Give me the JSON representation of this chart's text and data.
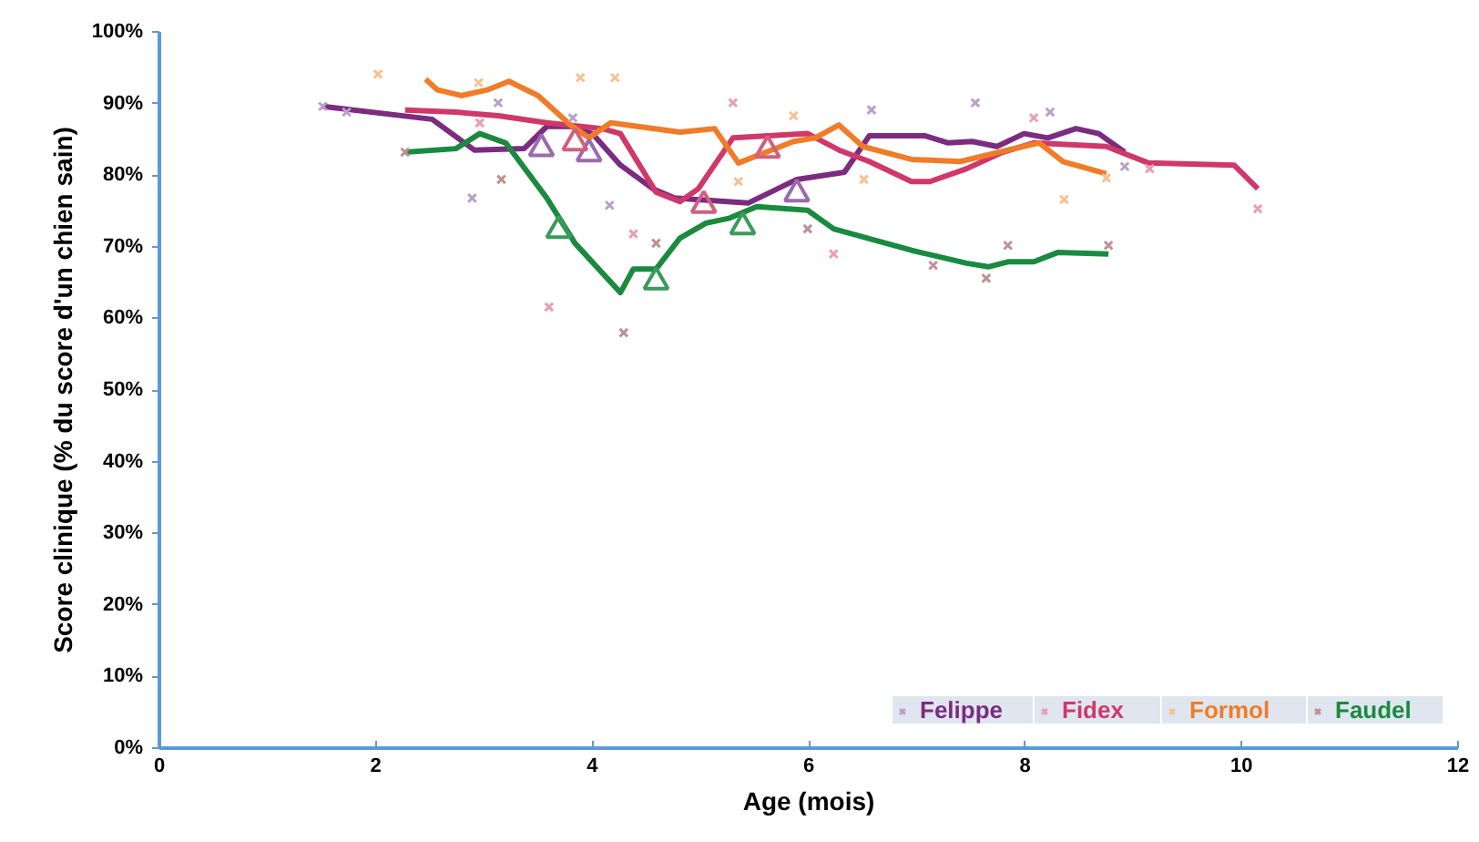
{
  "chart_data": {
    "type": "line",
    "xlabel": "Age (mois)",
    "ylabel": "Score clinique (% du score d'un chien sain)",
    "xlim": [
      0,
      12
    ],
    "xticks": [
      0,
      2,
      4,
      6,
      8,
      10,
      12
    ],
    "ylim": [
      0,
      100
    ],
    "yticks": [
      {
        "value": 0,
        "label": "0%"
      },
      {
        "value": 10,
        "label": "10%"
      },
      {
        "value": 20,
        "label": "20%"
      },
      {
        "value": 30,
        "label": "30%"
      },
      {
        "value": 40,
        "label": "40%"
      },
      {
        "value": 50,
        "label": "50%"
      },
      {
        "value": 60,
        "label": "60%"
      },
      {
        "value": 70,
        "label": "70%"
      },
      {
        "value": 80,
        "label": "80%"
      },
      {
        "value": 90,
        "label": "90%"
      },
      {
        "value": 100,
        "label": "100%"
      }
    ],
    "grid": false,
    "legend": "bottom right",
    "line_style": "solid",
    "series": [
      {
        "name": "Felippe",
        "type": "scatter",
        "marker": "cross",
        "color": "#b9a0c8",
        "x": [
          1.51,
          1.73,
          2.89,
          3.13,
          3.82,
          4.16,
          6.58,
          7.54,
          8.23,
          8.92
        ],
        "values": [
          89.6,
          88.8,
          76.8,
          90.1,
          88.0,
          75.8,
          89.1,
          90.1,
          88.8,
          81.2
        ]
      },
      {
        "color": "#7b2c80",
        "x": [
          1.51,
          2.52,
          2.91,
          3.37,
          3.58,
          3.8,
          4.0,
          4.26,
          4.56,
          4.76,
          5.44,
          5.89,
          6.33,
          6.56,
          7.07,
          7.29,
          7.51,
          7.74,
          7.99,
          8.21,
          8.47,
          8.68,
          8.92
        ],
        "values": [
          89.6,
          87.8,
          83.5,
          83.7,
          86.8,
          86.8,
          85.8,
          81.4,
          78.1,
          76.8,
          76.1,
          79.4,
          80.4,
          85.5,
          85.5,
          84.5,
          84.7,
          84.0,
          85.8,
          85.2,
          86.5,
          85.8,
          83.2
        ]
      },
      {
        "name": "Fidex",
        "type": "scatter",
        "marker": "cross",
        "color": "#e8a0b4",
        "x": [
          2.96,
          3.6,
          4.38,
          5.3,
          6.23,
          8.08,
          9.15,
          10.15
        ],
        "values": [
          87.3,
          61.6,
          71.8,
          90.1,
          69.0,
          88.0,
          80.9,
          75.3
        ]
      },
      {
        "color": "#d0386a",
        "x": [
          2.27,
          2.74,
          3.13,
          3.58,
          4.09,
          4.26,
          4.59,
          4.81,
          4.98,
          5.3,
          5.99,
          6.28,
          6.56,
          6.95,
          7.12,
          7.46,
          7.79,
          8.08,
          8.75,
          9.14,
          9.93,
          10.15
        ],
        "values": [
          89.1,
          88.8,
          88.3,
          87.3,
          86.5,
          85.8,
          77.6,
          76.3,
          78.1,
          85.2,
          85.8,
          83.5,
          81.9,
          79.1,
          79.1,
          80.9,
          83.2,
          84.5,
          84.0,
          81.7,
          81.4,
          78.1
        ]
      },
      {
        "name": "Formol",
        "type": "scatter",
        "marker": "cross",
        "color": "#f8c090",
        "x": [
          2.02,
          2.95,
          3.89,
          4.21,
          5.35,
          5.86,
          6.51,
          8.36,
          8.75
        ],
        "values": [
          94.1,
          92.9,
          93.6,
          93.6,
          79.1,
          88.3,
          79.4,
          76.6,
          79.6
        ]
      },
      {
        "color": "#f07c28",
        "x": [
          2.46,
          2.57,
          2.79,
          3.03,
          3.23,
          3.5,
          3.8,
          3.97,
          4.17,
          4.81,
          5.13,
          5.35,
          5.86,
          6.06,
          6.28,
          6.5,
          6.95,
          7.4,
          7.84,
          8.13,
          8.35,
          8.75
        ],
        "values": [
          93.4,
          91.9,
          91.1,
          91.9,
          93.1,
          91.1,
          87.0,
          85.2,
          87.3,
          86.0,
          86.5,
          81.7,
          84.7,
          85.2,
          87.0,
          84.0,
          82.2,
          81.9,
          83.5,
          84.5,
          81.9,
          80.2
        ]
      },
      {
        "name": "Faudel",
        "type": "scatter",
        "marker": "cross",
        "color": "#c09090",
        "x": [
          2.27,
          3.16,
          4.29,
          4.59,
          5.99,
          7.15,
          7.64,
          7.84,
          8.77
        ],
        "values": [
          83.2,
          79.4,
          58.0,
          70.5,
          72.5,
          67.4,
          65.6,
          70.2,
          70.2
        ]
      },
      {
        "color": "#1a8a3f",
        "x": [
          2.27,
          2.74,
          2.96,
          3.2,
          3.58,
          3.84,
          4.26,
          4.38,
          4.59,
          4.81,
          5.05,
          5.27,
          5.52,
          5.99,
          6.23,
          6.95,
          7.46,
          7.66,
          7.84,
          8.08,
          8.3,
          8.77
        ],
        "values": [
          83.2,
          83.7,
          85.8,
          84.5,
          76.8,
          70.5,
          63.6,
          66.9,
          66.9,
          71.2,
          73.3,
          74.0,
          75.6,
          75.1,
          72.5,
          69.5,
          67.7,
          67.2,
          67.9,
          67.9,
          69.2,
          69.0
        ]
      },
      {
        "type": "scatter",
        "marker": "triangle",
        "color": "#9a6aae",
        "x": [
          3.53,
          3.97,
          5.89
        ],
        "values": [
          83.7,
          83.0,
          77.4
        ]
      },
      {
        "type": "scatter",
        "marker": "triangle",
        "color": "#d0607e",
        "x": [
          3.84,
          5.03,
          5.62
        ],
        "values": [
          84.5,
          75.8,
          83.5
        ]
      },
      {
        "type": "scatter",
        "marker": "triangle",
        "color": "#3a9a5a",
        "x": [
          3.69,
          4.59,
          5.39
        ],
        "values": [
          72.3,
          65.1,
          72.8
        ]
      }
    ]
  }
}
